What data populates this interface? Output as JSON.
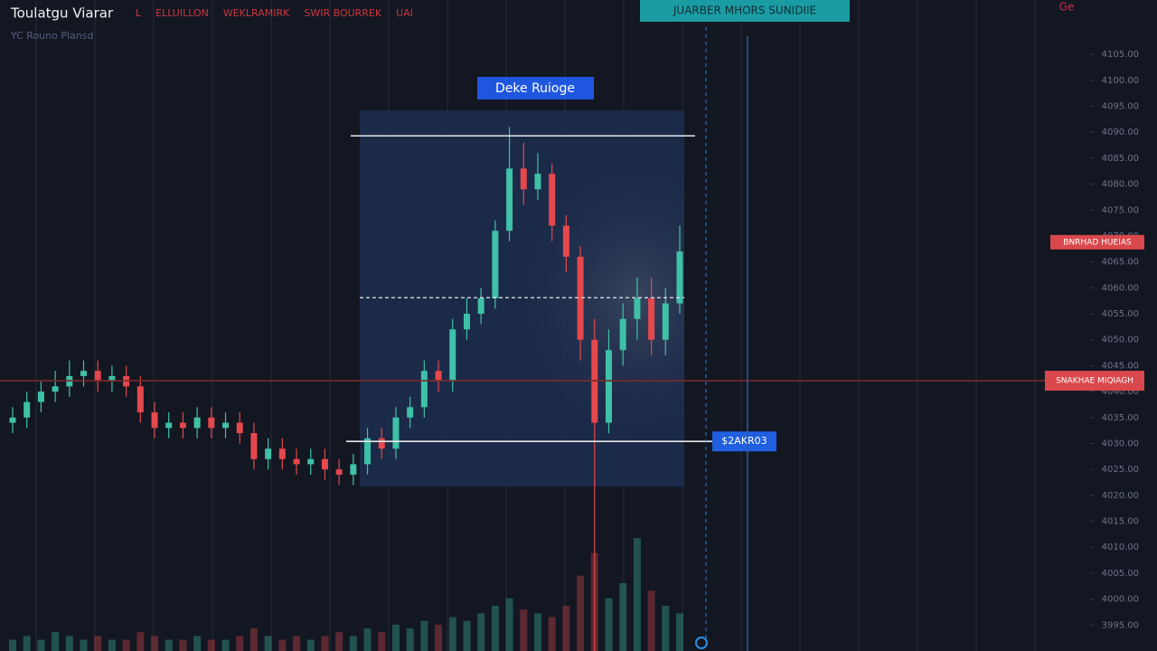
{
  "header": {
    "title": "Toulatgu Viarar",
    "tags": [
      "L",
      "ELLUILLON",
      "WEKLRAMIRK",
      "SWIR BOURREK",
      "UAI"
    ],
    "subtitle": "YC  Rouno Plansd",
    "badge": "JUARBER   MHORS   SUNIDIIE",
    "icon": "Ge"
  },
  "chart_data": {
    "type": "candlestick",
    "title": "Deke Ruioge",
    "open": [
      4034,
      4035,
      4038,
      4040,
      4041,
      4043,
      4044,
      4042,
      4043,
      4041,
      4036,
      4033,
      4034,
      4033,
      4035,
      4033,
      4034,
      4032,
      4027,
      4029,
      4027,
      4026,
      4027,
      4025,
      4024,
      4026,
      4031,
      4029,
      4035,
      4037,
      4044,
      4042,
      4052,
      4055,
      4058,
      4071,
      4083,
      4079,
      4082,
      4072,
      4066,
      4050,
      4034,
      4048,
      4054,
      4058,
      4050,
      4057
    ],
    "high": [
      4037,
      4040,
      4042,
      4044,
      4046,
      4046,
      4046,
      4045,
      4045,
      4043,
      4038,
      4036,
      4036,
      4037,
      4037,
      4036,
      4036,
      4034,
      4031,
      4031,
      4029,
      4029,
      4029,
      4027,
      4028,
      4033,
      4033,
      4037,
      4039,
      4046,
      4046,
      4054,
      4058,
      4060,
      4073,
      4091,
      4088,
      4086,
      4084,
      4074,
      4068,
      4054,
      4052,
      4057,
      4062,
      4062,
      4060,
      4072
    ],
    "low": [
      4032,
      4033,
      4036,
      4038,
      4039,
      4041,
      4040,
      4040,
      4039,
      4034,
      4031,
      4031,
      4031,
      4031,
      4031,
      4031,
      4030,
      4025,
      4025,
      4025,
      4024,
      4024,
      4023,
      4022,
      4022,
      4024,
      4027,
      4027,
      4033,
      4035,
      4040,
      4040,
      4050,
      4053,
      4056,
      4069,
      4076,
      4077,
      4069,
      4063,
      4046,
      3990,
      4032,
      4045,
      4050,
      4047,
      4047,
      4055
    ],
    "close": [
      4035,
      4038,
      4040,
      4041,
      4043,
      4044,
      4042,
      4043,
      4041,
      4036,
      4033,
      4034,
      4033,
      4035,
      4033,
      4034,
      4032,
      4027,
      4029,
      4027,
      4026,
      4027,
      4025,
      4024,
      4026,
      4031,
      4029,
      4035,
      4037,
      4044,
      4042,
      4052,
      4055,
      4058,
      4071,
      4083,
      4079,
      4082,
      4072,
      4066,
      4050,
      4034,
      4048,
      4054,
      4058,
      4050,
      4057,
      4067
    ],
    "volume": [
      3,
      4,
      3,
      5,
      4,
      3,
      4,
      3,
      3,
      5,
      4,
      3,
      3,
      4,
      3,
      3,
      4,
      6,
      4,
      3,
      4,
      3,
      4,
      5,
      4,
      6,
      5,
      7,
      6,
      8,
      7,
      9,
      8,
      10,
      12,
      14,
      11,
      10,
      9,
      12,
      20,
      26,
      14,
      18,
      30,
      16,
      12,
      10
    ],
    "up_color": "#3fc1a7",
    "down_color": "#e5484d",
    "ylim": [
      3990,
      4112
    ],
    "yticks": [
      {
        "value": 4105,
        "label": "4105.00"
      },
      {
        "value": 4100,
        "label": "4100.00"
      },
      {
        "value": 4095,
        "label": "4095.00"
      },
      {
        "value": 4090,
        "label": "4090.00"
      },
      {
        "value": 4085,
        "label": "4085.00"
      },
      {
        "value": 4080,
        "label": "4080.00"
      },
      {
        "value": 4075,
        "label": "4075.00"
      },
      {
        "value": 4070,
        "label": "4070.00"
      },
      {
        "value": 4065,
        "label": "4065.00"
      },
      {
        "value": 4060,
        "label": "4060.00"
      },
      {
        "value": 4055,
        "label": "4055.00"
      },
      {
        "value": 4050,
        "label": "4050.00"
      },
      {
        "value": 4045,
        "label": "4045.00"
      },
      {
        "value": 4040,
        "label": "4040.00"
      },
      {
        "value": 4035,
        "label": "4035.00"
      },
      {
        "value": 4030,
        "label": "4030.00"
      },
      {
        "value": 4025,
        "label": "4025.00"
      },
      {
        "value": 4020,
        "label": "4020.00"
      },
      {
        "value": 4015,
        "label": "4015.00"
      },
      {
        "value": 4010,
        "label": "4010.00"
      },
      {
        "value": 4005,
        "label": "4005.00"
      },
      {
        "value": 4000,
        "label": "4000.00"
      },
      {
        "value": 3995,
        "label": "3995.00"
      }
    ],
    "range": {
      "top": 4094.2,
      "bottom": 4021.7
    },
    "levels": [
      {
        "value": 4089.3,
        "style": "solid",
        "color": "#e8e8e8"
      },
      {
        "value": 4058.1,
        "style": "dashed",
        "color": "#e8e8e8"
      },
      {
        "value": 4030.4,
        "style": "solid",
        "color": "#e8e8e8",
        "label": "$2AKR03",
        "label_color": "#1f5fe0"
      },
      {
        "value": 4042.1,
        "style": "solid",
        "color": "#7a2a2a",
        "label": "SNAKHAE MIQIAGH",
        "label_color": "#d9484c"
      }
    ],
    "markers": [
      {
        "value": 4068.8,
        "label": "BNRHAD HUEIAS",
        "color": "#d9484c"
      }
    ]
  }
}
